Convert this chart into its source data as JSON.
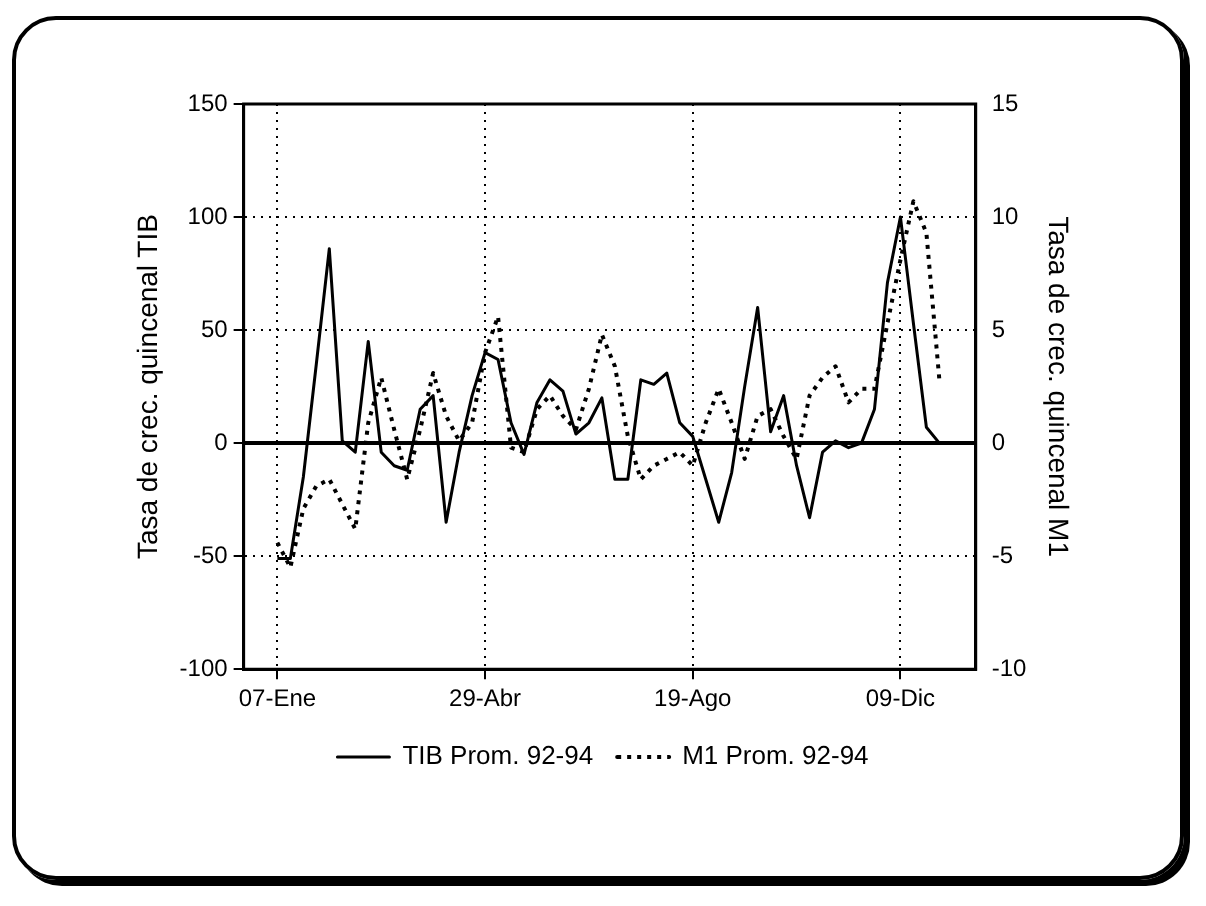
{
  "chart_data": {
    "type": "line",
    "xlabel": null,
    "ylabel": "Tasa de crec. quincenal TIB",
    "y2label": "Tasa de crec. quincenal M1",
    "categories": [
      "07-Ene",
      null,
      null,
      null,
      null,
      null,
      null,
      null,
      null,
      null,
      null,
      null,
      null,
      null,
      null,
      null,
      "29-Abr",
      null,
      null,
      null,
      null,
      null,
      null,
      null,
      null,
      null,
      null,
      null,
      null,
      null,
      null,
      null,
      "19-Ago",
      null,
      null,
      null,
      null,
      null,
      null,
      null,
      null,
      null,
      null,
      null,
      null,
      null,
      null,
      null,
      "09-Dic",
      null,
      null,
      null
    ],
    "series": [
      {
        "name": "TIB Prom. 92-94",
        "color": "#000000",
        "line_style": "solid",
        "values": [
          -51,
          -51,
          -15,
          35,
          86,
          1,
          -4,
          45,
          -4,
          -10,
          -12,
          15,
          21,
          -35,
          -4,
          21,
          40,
          37,
          9,
          -5,
          18,
          28,
          23,
          4,
          9,
          20,
          -16,
          -16,
          28,
          26,
          31,
          9,
          3,
          -16,
          -35,
          -13,
          25,
          60,
          5,
          21,
          -10,
          -33,
          -4,
          1,
          -2,
          0,
          15,
          71,
          100,
          53,
          7,
          0
        ]
      },
      {
        "name": "M1 Prom. 92-94",
        "color": "#000000",
        "line_style": "dotted",
        "axis": "y2",
        "values": [
          -4.4,
          -5.5,
          -2.9,
          -1.9,
          -1.6,
          -2.7,
          -3.8,
          0.9,
          2.9,
          0.6,
          -1.6,
          0.6,
          3.1,
          1.2,
          0.1,
          0.9,
          4.0,
          5.6,
          -0.2,
          -0.4,
          1.5,
          2.1,
          1.2,
          0.6,
          2.4,
          4.8,
          3.4,
          0.3,
          -1.6,
          -1.0,
          -0.7,
          -0.4,
          -1.0,
          0.9,
          2.4,
          0.9,
          -0.7,
          1.2,
          1.5,
          0.3,
          -0.7,
          2.1,
          2.9,
          3.4,
          1.8,
          2.4,
          2.4,
          5.3,
          8.1,
          10.7,
          9.3,
          2.8
        ]
      }
    ],
    "ylim": [
      -100,
      150
    ],
    "yticks": [
      -100,
      -50,
      0,
      50,
      100,
      150
    ],
    "y2lim": [
      -10,
      15
    ],
    "y2ticks": [
      -10,
      -5,
      0,
      5,
      10,
      15
    ],
    "ref_lines": [
      {
        "axis": "y",
        "value": 0,
        "label": null
      }
    ],
    "grid": true,
    "legend": "bottom",
    "marker": "none"
  }
}
